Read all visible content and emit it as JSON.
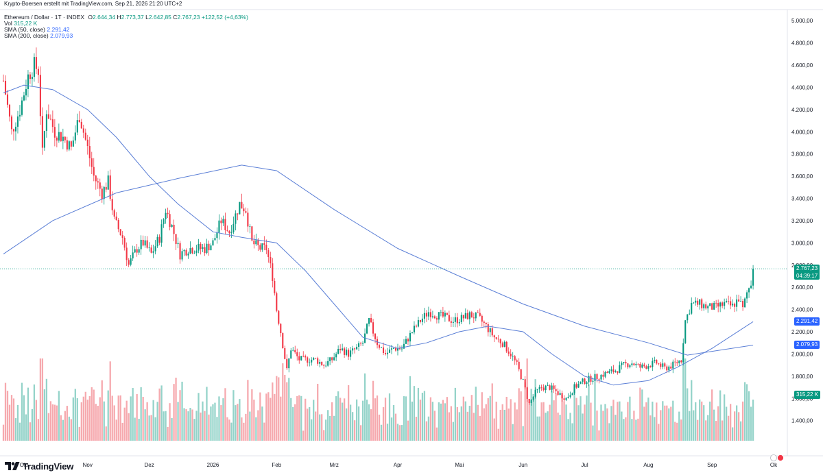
{
  "header": {
    "attribution": "Krypto-Boersen erstellt mit TradingView.com, Sep 21, 2026 21:20 UTC+2"
  },
  "legend": {
    "symbol": "Ethereum / Dollar · 1T · INDEX",
    "o_label": "O",
    "o_value": "2.644,34",
    "h_label": "H",
    "h_value": "2.773,37",
    "l_label": "L",
    "l_value": "2.642,85",
    "c_label": "C",
    "c_value": "2.767,23",
    "change": "+122,52 (+4,63%)",
    "vol_label": "Vol",
    "vol_value": "315,22 K",
    "sma50_label": "SMA (50, close)",
    "sma50_value": "2.291,42",
    "sma200_label": "SMA (200, close)",
    "sma200_value": "2.079,93"
  },
  "price_tags": {
    "last_price": "2.767,23",
    "countdown": "04:39:17",
    "sma50": "2.291,42",
    "sma200": "2.079,93",
    "volume": "315,22 K"
  },
  "colors": {
    "up": "#089981",
    "down": "#f23645",
    "up_vol": "#94d3c9",
    "down_vol": "#f6a9ae",
    "sma": "#5b7fd6",
    "sma50_tag": "#2962ff",
    "sma200_tag": "#2962ff",
    "last_price_line": "#089981",
    "grid": "#f0f3fa"
  },
  "branding": {
    "logo_text": "TradingView",
    "logo_icon": "tradingview-logo-icon"
  },
  "chart_data": {
    "type": "candlestick",
    "title": "Ethereum / Dollar · 1T · INDEX",
    "interval": "1T",
    "ylim": [
      1250,
      5100
    ],
    "y_ticks": [
      {
        "value": 1400,
        "label": "1.400,00"
      },
      {
        "value": 1600,
        "label": "1.600,00"
      },
      {
        "value": 1800,
        "label": "1.800,00"
      },
      {
        "value": 2000,
        "label": "2.000,00"
      },
      {
        "value": 2200,
        "label": "2.200,00"
      },
      {
        "value": 2400,
        "label": "2.400,00"
      },
      {
        "value": 2600,
        "label": "2.600,00"
      },
      {
        "value": 2800,
        "label": "2.800,00"
      },
      {
        "value": 3000,
        "label": "3.000,00"
      },
      {
        "value": 3200,
        "label": "3.200,00"
      },
      {
        "value": 3400,
        "label": "3.400,00"
      },
      {
        "value": 3600,
        "label": "3.600,00"
      },
      {
        "value": 3800,
        "label": "3.800,00"
      },
      {
        "value": 4000,
        "label": "4.000,00"
      },
      {
        "value": 4200,
        "label": "4.200,00"
      },
      {
        "value": 4400,
        "label": "4.400,00"
      },
      {
        "value": 4600,
        "label": "4.600,00"
      },
      {
        "value": 4800,
        "label": "4.800,00"
      },
      {
        "value": 5000,
        "label": "5.000,00"
      }
    ],
    "x_start": "2025-09-21",
    "x_ticks": [
      {
        "date": "2025-10-01",
        "label": "Okt"
      },
      {
        "date": "2025-11-01",
        "label": "Nov"
      },
      {
        "date": "2025-12-01",
        "label": "Dez"
      },
      {
        "date": "2026-01-01",
        "label": "2026"
      },
      {
        "date": "2026-02-01",
        "label": "Feb"
      },
      {
        "date": "2026-03-01",
        "label": "Mrz"
      },
      {
        "date": "2026-04-01",
        "label": "Apr"
      },
      {
        "date": "2026-05-01",
        "label": "Mai"
      },
      {
        "date": "2026-06-01",
        "label": "Jun"
      },
      {
        "date": "2026-07-01",
        "label": "Jul"
      },
      {
        "date": "2026-08-01",
        "label": "Aug"
      },
      {
        "date": "2026-09-01",
        "label": "Sep"
      },
      {
        "date": "2026-10-01",
        "label": "Ok"
      }
    ],
    "close_path": [
      [
        "2025-09-21",
        4460
      ],
      [
        "2025-09-25",
        4000
      ],
      [
        "2025-09-29",
        4200
      ],
      [
        "2025-10-03",
        4500
      ],
      [
        "2025-10-06",
        4600
      ],
      [
        "2025-10-08",
        4550
      ],
      [
        "2025-10-10",
        3800
      ],
      [
        "2025-10-12",
        4200
      ],
      [
        "2025-10-16",
        4000
      ],
      [
        "2025-10-20",
        3950
      ],
      [
        "2025-10-24",
        3850
      ],
      [
        "2025-10-28",
        4150
      ],
      [
        "2025-11-01",
        3850
      ],
      [
        "2025-11-04",
        3600
      ],
      [
        "2025-11-08",
        3450
      ],
      [
        "2025-11-11",
        3550
      ],
      [
        "2025-11-14",
        3200
      ],
      [
        "2025-11-18",
        3050
      ],
      [
        "2025-11-21",
        2800
      ],
      [
        "2025-11-25",
        2950
      ],
      [
        "2025-11-28",
        3000
      ],
      [
        "2025-12-02",
        2900
      ],
      [
        "2025-12-06",
        3050
      ],
      [
        "2025-12-09",
        3300
      ],
      [
        "2025-12-12",
        3150
      ],
      [
        "2025-12-16",
        2900
      ],
      [
        "2025-12-20",
        2950
      ],
      [
        "2025-12-24",
        2950
      ],
      [
        "2025-12-28",
        2950
      ],
      [
        "2026-01-01",
        3000
      ],
      [
        "2026-01-05",
        3200
      ],
      [
        "2026-01-09",
        3100
      ],
      [
        "2026-01-14",
        3350
      ],
      [
        "2026-01-17",
        3300
      ],
      [
        "2026-01-20",
        3000
      ],
      [
        "2026-01-24",
        2950
      ],
      [
        "2026-01-27",
        2950
      ],
      [
        "2026-01-30",
        2700
      ],
      [
        "2026-02-01",
        2400
      ],
      [
        "2026-02-03",
        2200
      ],
      [
        "2026-02-06",
        1850
      ],
      [
        "2026-02-08",
        2050
      ],
      [
        "2026-02-12",
        1950
      ],
      [
        "2026-02-16",
        1950
      ],
      [
        "2026-02-20",
        1950
      ],
      [
        "2026-02-24",
        1900
      ],
      [
        "2026-02-28",
        1950
      ],
      [
        "2026-03-04",
        2050
      ],
      [
        "2026-03-08",
        2000
      ],
      [
        "2026-03-12",
        2050
      ],
      [
        "2026-03-15",
        2100
      ],
      [
        "2026-03-18",
        2300
      ],
      [
        "2026-03-22",
        2100
      ],
      [
        "2026-03-26",
        2000
      ],
      [
        "2026-03-30",
        2050
      ],
      [
        "2026-04-03",
        2050
      ],
      [
        "2026-04-08",
        2200
      ],
      [
        "2026-04-12",
        2300
      ],
      [
        "2026-04-16",
        2380
      ],
      [
        "2026-04-20",
        2350
      ],
      [
        "2026-04-24",
        2330
      ],
      [
        "2026-04-28",
        2300
      ],
      [
        "2026-05-02",
        2320
      ],
      [
        "2026-05-06",
        2350
      ],
      [
        "2026-05-10",
        2330
      ],
      [
        "2026-05-14",
        2250
      ],
      [
        "2026-05-18",
        2150
      ],
      [
        "2026-05-22",
        2100
      ],
      [
        "2026-05-26",
        2000
      ],
      [
        "2026-05-29",
        1900
      ],
      [
        "2026-06-01",
        1750
      ],
      [
        "2026-06-04",
        1550
      ],
      [
        "2026-06-07",
        1650
      ],
      [
        "2026-06-10",
        1700
      ],
      [
        "2026-06-14",
        1700
      ],
      [
        "2026-06-18",
        1650
      ],
      [
        "2026-06-22",
        1600
      ],
      [
        "2026-06-26",
        1700
      ],
      [
        "2026-06-30",
        1750
      ],
      [
        "2026-07-04",
        1780
      ],
      [
        "2026-07-08",
        1800
      ],
      [
        "2026-07-12",
        1830
      ],
      [
        "2026-07-16",
        1850
      ],
      [
        "2026-07-20",
        1900
      ],
      [
        "2026-07-24",
        1920
      ],
      [
        "2026-07-28",
        1880
      ],
      [
        "2026-08-01",
        1900
      ],
      [
        "2026-08-05",
        1920
      ],
      [
        "2026-08-09",
        1870
      ],
      [
        "2026-08-13",
        1900
      ],
      [
        "2026-08-17",
        1950
      ],
      [
        "2026-08-19",
        2300
      ],
      [
        "2026-08-22",
        2450
      ],
      [
        "2026-08-26",
        2450
      ],
      [
        "2026-08-30",
        2420
      ],
      [
        "2026-09-03",
        2420
      ],
      [
        "2026-09-07",
        2450
      ],
      [
        "2026-09-11",
        2430
      ],
      [
        "2026-09-14",
        2500
      ],
      [
        "2026-09-16",
        2400
      ],
      [
        "2026-09-18",
        2550
      ],
      [
        "2026-09-20",
        2640
      ],
      [
        "2026-09-21",
        2767
      ]
    ],
    "sma50": [
      [
        "2025-09-21",
        4350
      ],
      [
        "2025-10-01",
        4420
      ],
      [
        "2025-10-15",
        4380
      ],
      [
        "2025-11-01",
        4200
      ],
      [
        "2025-11-15",
        3950
      ],
      [
        "2025-12-01",
        3600
      ],
      [
        "2025-12-15",
        3350
      ],
      [
        "2026-01-01",
        3100
      ],
      [
        "2026-01-15",
        3050
      ],
      [
        "2026-02-01",
        3000
      ],
      [
        "2026-02-15",
        2750
      ],
      [
        "2026-03-01",
        2450
      ],
      [
        "2026-03-15",
        2150
      ],
      [
        "2026-04-01",
        2050
      ],
      [
        "2026-04-15",
        2100
      ],
      [
        "2026-05-01",
        2200
      ],
      [
        "2026-05-15",
        2250
      ],
      [
        "2026-06-01",
        2200
      ],
      [
        "2026-06-15",
        2000
      ],
      [
        "2026-07-01",
        1800
      ],
      [
        "2026-07-15",
        1720
      ],
      [
        "2026-08-01",
        1760
      ],
      [
        "2026-08-15",
        1880
      ],
      [
        "2026-09-01",
        2050
      ],
      [
        "2026-09-21",
        2291
      ]
    ],
    "sma200": [
      [
        "2025-09-21",
        2900
      ],
      [
        "2025-10-15",
        3200
      ],
      [
        "2025-11-15",
        3450
      ],
      [
        "2025-12-15",
        3580
      ],
      [
        "2026-01-15",
        3700
      ],
      [
        "2026-02-01",
        3650
      ],
      [
        "2026-03-01",
        3300
      ],
      [
        "2026-04-01",
        2950
      ],
      [
        "2026-05-01",
        2700
      ],
      [
        "2026-06-01",
        2450
      ],
      [
        "2026-07-01",
        2250
      ],
      [
        "2026-08-01",
        2100
      ],
      [
        "2026-08-20",
        1990
      ],
      [
        "2026-09-21",
        2080
      ]
    ],
    "last_close": 2767.23
  }
}
